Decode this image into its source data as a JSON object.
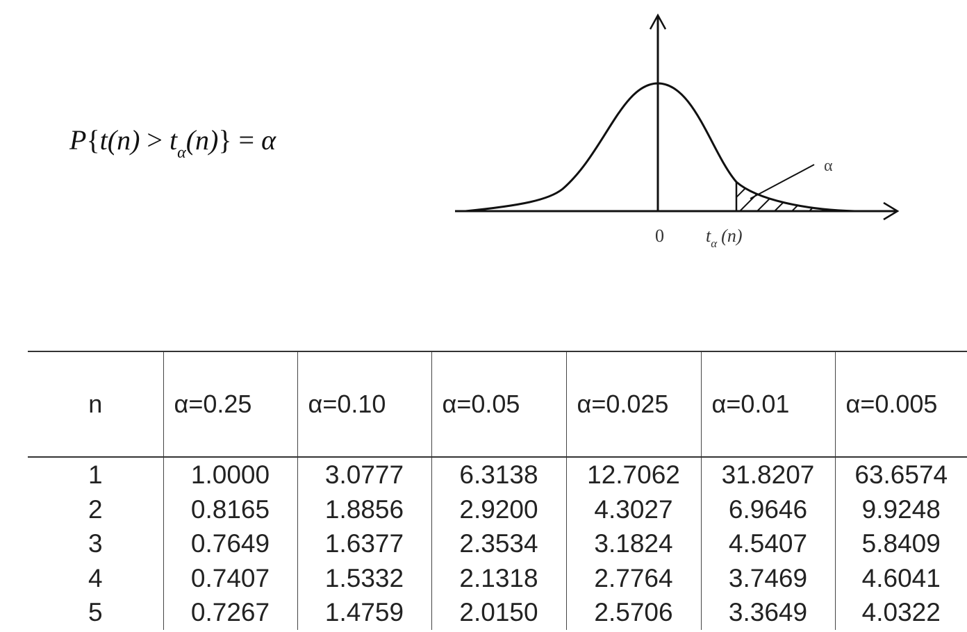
{
  "formula": {
    "P": "P",
    "open_brace": "{",
    "t": "t",
    "n1": "(n)",
    "gt": " > ",
    "t_alpha": "t",
    "alpha_sub": "α",
    "n2": "(n)",
    "close_brace": "}",
    "eq": " = ",
    "alpha": "α"
  },
  "diagram": {
    "origin_label": "0",
    "critical_label_t": "t",
    "critical_label_sub": "α",
    "critical_label_n": "(n)",
    "area_label": "α"
  },
  "table": {
    "headers": [
      "n",
      "α=0.25",
      "α=0.10",
      "α=0.05",
      "α=0.025",
      "α=0.01",
      "α=0.005"
    ],
    "rows": [
      [
        "1",
        "1.0000",
        "3.0777",
        "6.3138",
        "12.7062",
        "31.8207",
        "63.6574"
      ],
      [
        "2",
        "0.8165",
        "1.8856",
        "2.9200",
        "4.3027",
        "6.9646",
        "9.9248"
      ],
      [
        "3",
        "0.7649",
        "1.6377",
        "2.3534",
        "3.1824",
        "4.5407",
        "5.8409"
      ],
      [
        "4",
        "0.7407",
        "1.5332",
        "2.1318",
        "2.7764",
        "3.7469",
        "4.6041"
      ],
      [
        "5",
        "0.7267",
        "1.4759",
        "2.0150",
        "2.5706",
        "3.3649",
        "4.0322"
      ]
    ]
  }
}
